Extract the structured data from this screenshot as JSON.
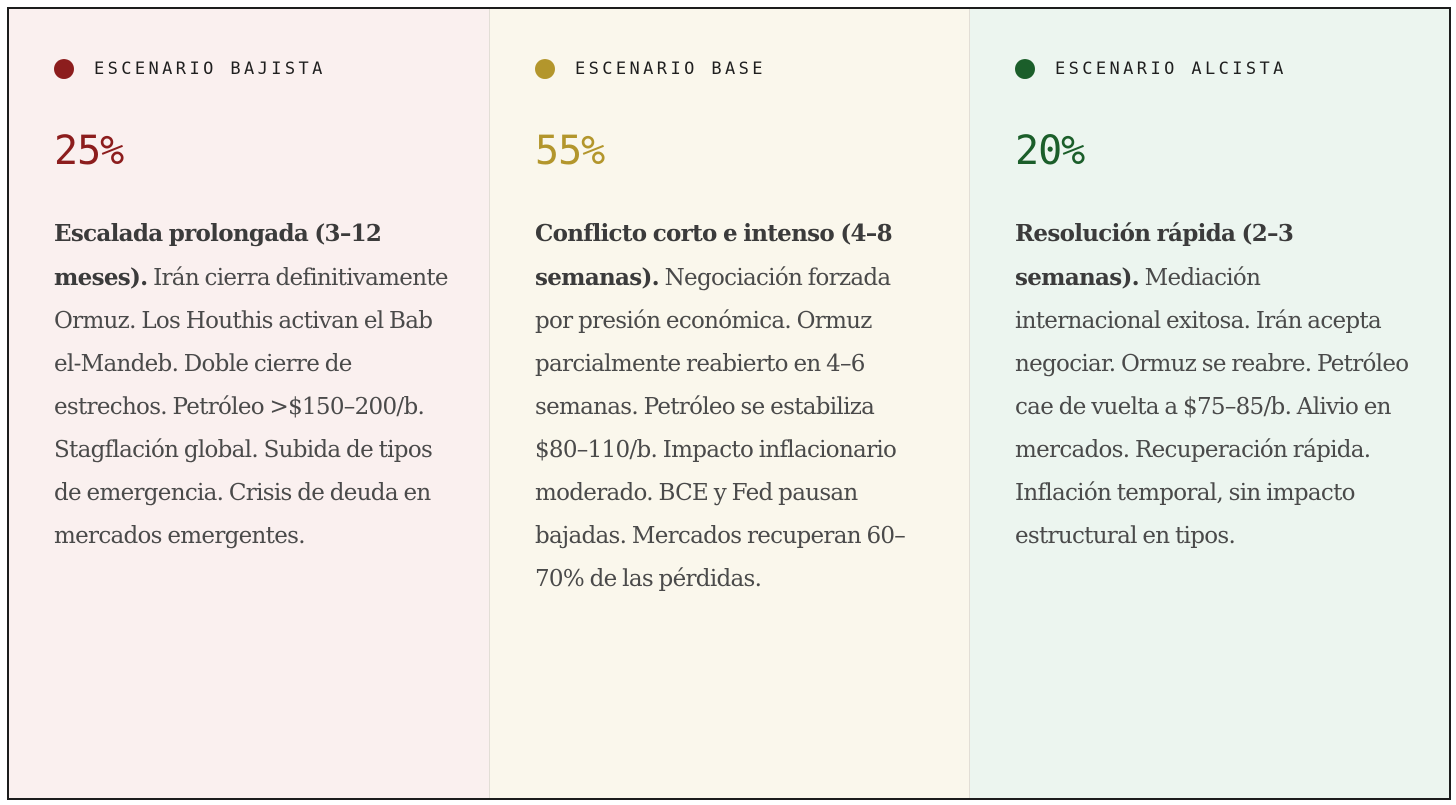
{
  "colors": {
    "bear": "#8c1d1d",
    "base": "#b3962c",
    "bull": "#1b5e2a"
  },
  "scenarios": [
    {
      "label": "ESCENARIO BAJISTA",
      "percent": "25%",
      "headline": "Escalada prolongada (3–12 meses).",
      "text": "Irán cierra definitivamente Ormuz. Los Houthis activan el Bab el-Mandeb. Doble cierre de estrechos. Petróleo >$150–200/b. Stagflación global. Subida de tipos de emergencia. Crisis de deuda en mercados emergentes."
    },
    {
      "label": "ESCENARIO BASE",
      "percent": "55%",
      "headline": "Conflicto corto e intenso (4–8 semanas).",
      "text": "Negociación forzada por presión económica. Ormuz parcialmente reabierto en 4–6 semanas. Petróleo se estabiliza $80–110/b. Impacto inflacionario moderado. BCE y Fed pausan bajadas. Mercados recuperan 60–70% de las pérdidas."
    },
    {
      "label": "ESCENARIO ALCISTA",
      "percent": "20%",
      "headline": "Resolución rápida (2–3 semanas).",
      "text": "Mediación internacional exitosa. Irán acepta negociar. Ormuz se reabre. Petróleo cae de vuelta a $75–85/b. Alivio en mercados. Recuperación rápida. Inflación temporal, sin impacto estructural en tipos."
    }
  ]
}
